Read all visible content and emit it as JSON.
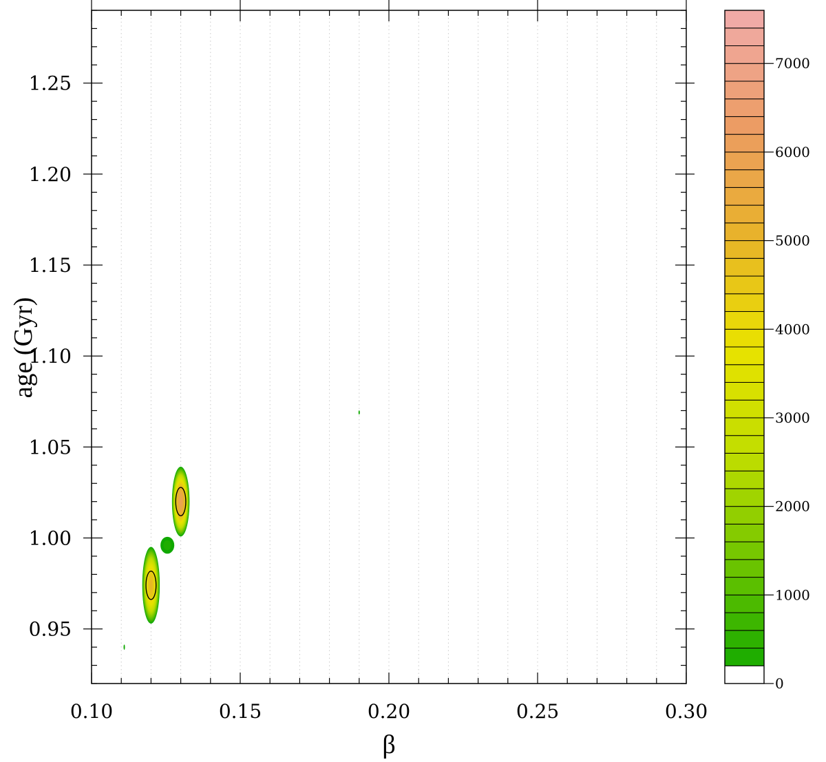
{
  "chart_data": {
    "type": "heatmap",
    "title": "",
    "xlabel": "β",
    "ylabel": "age (Gyr)",
    "xlim": [
      0.1,
      0.3
    ],
    "ylim": [
      0.92,
      1.29
    ],
    "x_ticks": [
      "0.10",
      "0.15",
      "0.20",
      "0.25",
      "0.30"
    ],
    "x_tick_values": [
      0.1,
      0.15,
      0.2,
      0.25,
      0.3
    ],
    "y_ticks": [
      "0.95",
      "1.00",
      "1.05",
      "1.10",
      "1.15",
      "1.20",
      "1.25"
    ],
    "y_tick_values": [
      0.95,
      1.0,
      1.05,
      1.1,
      1.15,
      1.2,
      1.25
    ],
    "grid": "dotted vertical lines at beta step 0.01",
    "grid_x_values": [
      0.11,
      0.12,
      0.13,
      0.14,
      0.15,
      0.16,
      0.17,
      0.18,
      0.19,
      0.2,
      0.21,
      0.22,
      0.23,
      0.24,
      0.25,
      0.26,
      0.27,
      0.28,
      0.29
    ],
    "colorbar": {
      "min": 0,
      "max": 7600,
      "tick_labels": [
        "0",
        "1000",
        "2000",
        "3000",
        "4000",
        "5000",
        "6000",
        "7000"
      ],
      "tick_values": [
        0,
        1000,
        2000,
        3000,
        4000,
        5000,
        6000,
        7000
      ],
      "level_step": 200,
      "colors": [
        "#ffffff",
        "#10a800",
        "#6cc400",
        "#bfdd00",
        "#e9e200",
        "#e8b329",
        "#ec9c62",
        "#f0aaa6"
      ]
    },
    "peaks": [
      {
        "beta": 0.13,
        "age": 1.02,
        "peak_value": 6100,
        "beta_halfwidth": 0.003,
        "age_halfwidth": 0.0195
      },
      {
        "beta": 0.12,
        "age": 0.974,
        "peak_value": 5100,
        "beta_halfwidth": 0.003,
        "age_halfwidth": 0.0215
      },
      {
        "beta": 0.1255,
        "age": 0.996,
        "peak_value": 500,
        "beta_halfwidth": 0.003,
        "age_halfwidth": 0.006
      },
      {
        "beta": 0.111,
        "age": 0.94,
        "peak_value": 300,
        "beta_halfwidth": 0.0004,
        "age_halfwidth": 0.0025
      },
      {
        "beta": 0.19,
        "age": 1.069,
        "peak_value": 300,
        "beta_halfwidth": 0.0004,
        "age_halfwidth": 0.002
      }
    ],
    "contour_lines": [
      {
        "beta": 0.13,
        "age": 1.02,
        "beta_halfwidth": 0.0017,
        "age_halfwidth": 0.0078
      },
      {
        "beta": 0.12,
        "age": 0.974,
        "beta_halfwidth": 0.0017,
        "age_halfwidth": 0.0078
      }
    ]
  }
}
